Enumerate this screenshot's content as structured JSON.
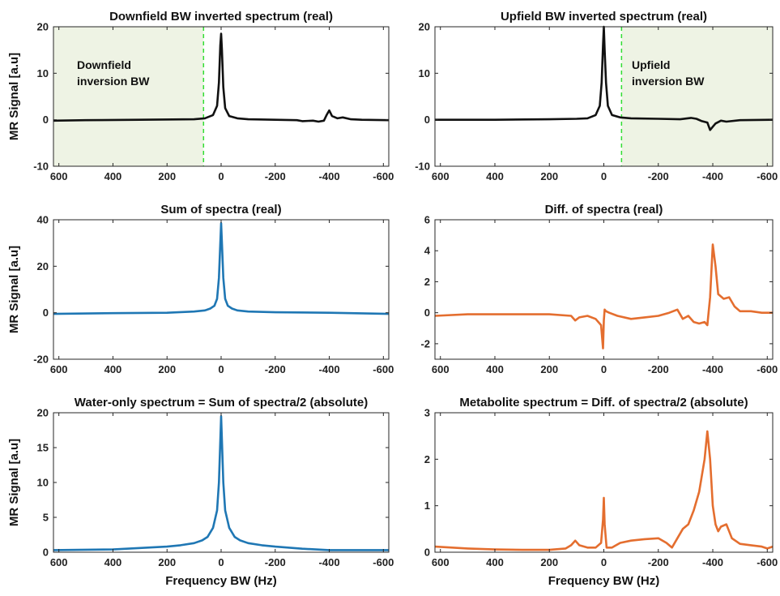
{
  "figure": {
    "ylabel": "MR Signal [a.u]",
    "xlabel": "Frequency BW (Hz)"
  },
  "chart_data": [
    {
      "type": "line",
      "title": "Downfield BW inverted spectrum (real)",
      "xlabel": "",
      "ylabel": "MR Signal [a.u]",
      "xlim": [
        620,
        -620
      ],
      "x_reversed": true,
      "ylim": [
        -10,
        20
      ],
      "xticks": [
        600,
        400,
        200,
        0,
        -200,
        -400,
        -600
      ],
      "yticks": [
        -10,
        0,
        10,
        20
      ],
      "color": "#111111",
      "shaded_region": {
        "from": 620,
        "to": 65,
        "color": "#eef3e4",
        "boundary_color": "#33dd33"
      },
      "annotation": [
        "Downfield",
        "inversion BW"
      ],
      "series": [
        {
          "x": [
            620,
            500,
            300,
            100,
            60,
            30,
            15,
            8,
            3,
            0,
            -3,
            -8,
            -15,
            -30,
            -60,
            -100,
            -200,
            -280,
            -300,
            -340,
            -360,
            -380,
            -390,
            -400,
            -410,
            -430,
            -450,
            -480,
            -520,
            -620
          ],
          "y": [
            -0.2,
            -0.1,
            0,
            0.1,
            0.3,
            1,
            3,
            8,
            16,
            18.5,
            15,
            7,
            2.5,
            0.8,
            0.3,
            0.1,
            0,
            -0.1,
            -0.3,
            -0.2,
            -0.4,
            -0.2,
            1.0,
            2.0,
            0.8,
            0.3,
            0.5,
            0.1,
            0,
            -0.1
          ]
        }
      ]
    },
    {
      "type": "line",
      "title": "Upfield BW inverted spectrum (real)",
      "xlabel": "",
      "ylabel": "",
      "xlim": [
        620,
        -620
      ],
      "x_reversed": true,
      "ylim": [
        -10,
        20
      ],
      "xticks": [
        600,
        400,
        200,
        0,
        -200,
        -400,
        -600
      ],
      "yticks": [
        -10,
        0,
        10,
        20
      ],
      "color": "#111111",
      "shaded_region": {
        "from": -65,
        "to": -620,
        "color": "#eef3e4",
        "boundary_color": "#33dd33"
      },
      "annotation": [
        "Upfield",
        "inversion BW"
      ],
      "series": [
        {
          "x": [
            620,
            400,
            200,
            100,
            60,
            30,
            15,
            8,
            3,
            0,
            -3,
            -8,
            -15,
            -30,
            -60,
            -100,
            -200,
            -280,
            -320,
            -340,
            -360,
            -380,
            -390,
            -400,
            -410,
            -430,
            -450,
            -500,
            -620
          ],
          "y": [
            0,
            0,
            0.1,
            0.2,
            0.3,
            1,
            3,
            8,
            16,
            20,
            15,
            8,
            3,
            1,
            0.5,
            0.3,
            0.2,
            0.1,
            0.4,
            0.2,
            -0.3,
            -0.6,
            -2.2,
            -1.5,
            -0.8,
            -0.2,
            -0.4,
            -0.1,
            0
          ]
        }
      ]
    },
    {
      "type": "line",
      "title": "Sum of spectra (real)",
      "xlabel": "",
      "ylabel": "MR Signal [a.u]",
      "xlim": [
        620,
        -620
      ],
      "x_reversed": true,
      "ylim": [
        -20,
        40
      ],
      "xticks": [
        600,
        400,
        200,
        0,
        -200,
        -400,
        -600
      ],
      "yticks": [
        -20,
        0,
        20,
        40
      ],
      "color": "#1f77b4",
      "series": [
        {
          "x": [
            620,
            400,
            200,
            100,
            60,
            40,
            25,
            15,
            8,
            3,
            0,
            -3,
            -8,
            -15,
            -25,
            -40,
            -60,
            -100,
            -200,
            -400,
            -620
          ],
          "y": [
            -0.5,
            -0.2,
            0,
            0.5,
            1.0,
            1.8,
            3,
            6,
            15,
            30,
            38.5,
            30,
            15,
            6,
            3,
            1.8,
            1.0,
            0.5,
            0.2,
            0,
            -0.5
          ]
        }
      ]
    },
    {
      "type": "line",
      "title": "Diff. of spectra (real)",
      "xlabel": "",
      "ylabel": "",
      "xlim": [
        620,
        -620
      ],
      "x_reversed": true,
      "ylim": [
        -3,
        6
      ],
      "xticks": [
        600,
        400,
        200,
        0,
        -200,
        -400,
        -600
      ],
      "yticks": [
        -2,
        0,
        2,
        4,
        6
      ],
      "color": "#e46e2f",
      "series": [
        {
          "x": [
            620,
            500,
            400,
            300,
            200,
            120,
            105,
            90,
            60,
            30,
            10,
            3,
            0,
            -3,
            -8,
            -20,
            -50,
            -100,
            -150,
            -200,
            -240,
            -270,
            -290,
            -310,
            -330,
            -350,
            -370,
            -380,
            -390,
            -400,
            -410,
            -420,
            -440,
            -460,
            -480,
            -500,
            -540,
            -580,
            -620
          ],
          "y": [
            -0.2,
            -0.1,
            -0.1,
            -0.1,
            -0.1,
            -0.2,
            -0.5,
            -0.3,
            -0.2,
            -0.4,
            -0.8,
            -2.3,
            -0.5,
            0.2,
            0.1,
            0,
            -0.2,
            -0.4,
            -0.3,
            -0.2,
            0,
            0.2,
            -0.4,
            -0.2,
            -0.6,
            -0.7,
            -0.6,
            -0.8,
            1.0,
            4.4,
            3.0,
            1.2,
            0.9,
            1.0,
            0.4,
            0.1,
            0.1,
            0,
            0
          ]
        }
      ]
    },
    {
      "type": "line",
      "title": "Water-only spectrum = Sum of spectra/2 (absolute)",
      "xlabel": "Frequency BW (Hz)",
      "ylabel": "MR Signal [a.u]",
      "xlim": [
        620,
        -620
      ],
      "x_reversed": true,
      "ylim": [
        0,
        20
      ],
      "xticks": [
        600,
        400,
        200,
        0,
        -200,
        -400,
        -600
      ],
      "yticks": [
        0,
        5,
        10,
        15,
        20
      ],
      "color": "#1f77b4",
      "series": [
        {
          "x": [
            620,
            400,
            300,
            200,
            150,
            100,
            70,
            50,
            30,
            15,
            8,
            3,
            0,
            -3,
            -8,
            -15,
            -30,
            -50,
            -70,
            -100,
            -150,
            -200,
            -300,
            -400,
            -620
          ],
          "y": [
            0.3,
            0.4,
            0.6,
            0.8,
            1.0,
            1.3,
            1.7,
            2.2,
            3.5,
            6,
            10,
            16,
            19.5,
            16,
            10,
            6,
            3.5,
            2.2,
            1.7,
            1.3,
            1.0,
            0.8,
            0.5,
            0.3,
            0.3
          ]
        }
      ]
    },
    {
      "type": "line",
      "title": "Metabolite spectrum = Diff. of spectra/2 (absolute)",
      "xlabel": "Frequency BW (Hz)",
      "ylabel": "",
      "xlim": [
        620,
        -620
      ],
      "x_reversed": true,
      "ylim": [
        0,
        3
      ],
      "xticks": [
        600,
        400,
        200,
        0,
        -200,
        -400,
        -600
      ],
      "yticks": [
        0,
        1,
        2,
        3
      ],
      "color": "#e46e2f",
      "series": [
        {
          "x": [
            620,
            500,
            400,
            300,
            200,
            140,
            120,
            105,
            90,
            60,
            30,
            10,
            3,
            0,
            -3,
            -10,
            -30,
            -60,
            -100,
            -150,
            -200,
            -230,
            -250,
            -270,
            -290,
            -310,
            -330,
            -350,
            -370,
            -380,
            -390,
            -400,
            -410,
            -420,
            -430,
            -450,
            -460,
            -470,
            -500,
            -540,
            -580,
            -600,
            -620
          ],
          "y": [
            0.12,
            0.08,
            0.06,
            0.05,
            0.05,
            0.08,
            0.15,
            0.25,
            0.15,
            0.1,
            0.1,
            0.2,
            0.7,
            1.17,
            0.6,
            0.1,
            0.1,
            0.2,
            0.25,
            0.28,
            0.3,
            0.2,
            0.1,
            0.3,
            0.5,
            0.6,
            0.9,
            1.3,
            2.0,
            2.6,
            2.0,
            1.0,
            0.6,
            0.45,
            0.55,
            0.6,
            0.45,
            0.3,
            0.18,
            0.15,
            0.12,
            0.08,
            0.12
          ]
        }
      ]
    }
  ]
}
